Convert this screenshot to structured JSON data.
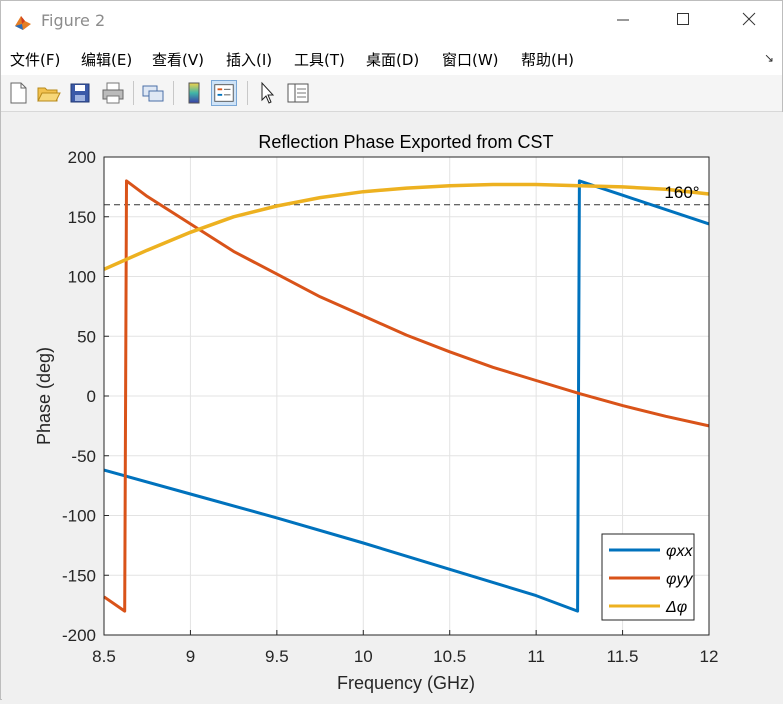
{
  "window": {
    "title": "Figure 2",
    "minimize_icon": "minimize-icon",
    "maximize_icon": "maximize-icon",
    "close_icon": "close-icon"
  },
  "menu": {
    "items": [
      "文件(F)",
      "编辑(E)",
      "查看(V)",
      "插入(I)",
      "工具(T)",
      "桌面(D)",
      "窗口(W)",
      "帮助(H)"
    ]
  },
  "toolbar": {
    "icons": [
      "new-figure-icon",
      "open-file-icon",
      "save-icon",
      "print-icon",
      "link-icon",
      "colorbar-icon",
      "legend-icon",
      "pointer-icon",
      "property-inspector-icon"
    ]
  },
  "chart_data": {
    "type": "line",
    "title": "Reflection Phase Exported from CST",
    "xlabel": "Frequency (GHz)",
    "ylabel": "Phase (deg)",
    "xlim": [
      8.5,
      12
    ],
    "ylim": [
      -200,
      200
    ],
    "xticks": [
      "8.5",
      "9",
      "9.5",
      "10",
      "10.5",
      "11",
      "11.5",
      "12"
    ],
    "yticks": [
      "200",
      "150",
      "100",
      "50",
      "0",
      "-50",
      "-100",
      "-150",
      "-200"
    ],
    "grid": true,
    "legend_position": "bottom-right",
    "annotation": {
      "text": "160°",
      "reference_y": 160
    },
    "series": [
      {
        "name": "φxx",
        "color": "#0072bd",
        "x": [
          8.5,
          9.0,
          9.5,
          10.0,
          10.5,
          11.0,
          11.24,
          11.25,
          11.5,
          12.0
        ],
        "y": [
          -62,
          -82,
          -102,
          -123,
          -145,
          -167,
          -180,
          180,
          168,
          144
        ]
      },
      {
        "name": "φyy",
        "color": "#d95319",
        "x": [
          8.5,
          8.62,
          8.63,
          8.75,
          9.0,
          9.25,
          9.5,
          9.75,
          10.0,
          10.25,
          10.5,
          10.75,
          11.0,
          11.25,
          11.5,
          11.75,
          12.0
        ],
        "y": [
          -168,
          -180,
          180,
          167,
          144,
          121,
          102,
          83,
          67,
          51,
          37,
          24,
          13,
          2,
          -8,
          -17,
          -25
        ]
      },
      {
        "name": "Δφ",
        "color": "#edb120",
        "x": [
          8.5,
          8.75,
          9.0,
          9.25,
          9.5,
          9.75,
          10.0,
          10.25,
          10.5,
          10.75,
          11.0,
          11.25,
          11.5,
          11.75,
          12.0
        ],
        "y": [
          106,
          122,
          137,
          150,
          159,
          166,
          171,
          174,
          176,
          177,
          177,
          176,
          175,
          173,
          169
        ]
      }
    ]
  }
}
